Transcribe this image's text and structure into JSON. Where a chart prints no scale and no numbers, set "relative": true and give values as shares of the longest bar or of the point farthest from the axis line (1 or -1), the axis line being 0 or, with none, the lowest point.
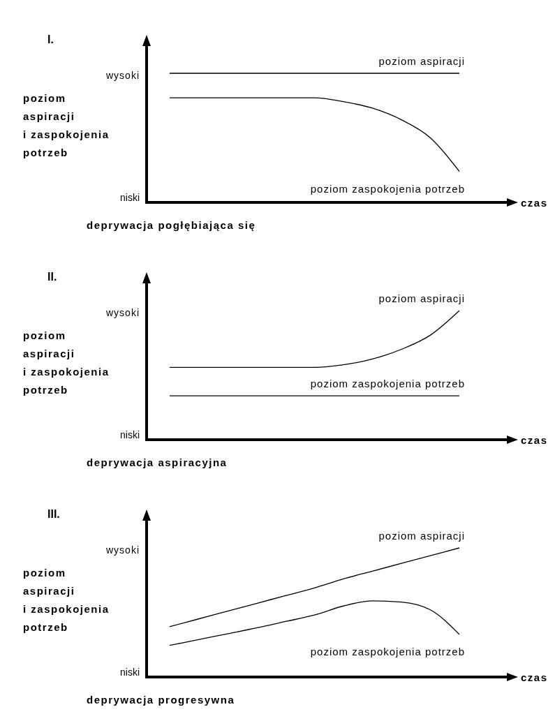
{
  "chart_data": [
    {
      "type": "line",
      "relative": true,
      "subtitle": "deprywacja pogłębiająca się",
      "xlabel": "czas",
      "ylabel": "poziom aspiracji i zaspokojenia potrzeb",
      "annotations": [
        "I.",
        "wysoki",
        "niski"
      ],
      "categories": [
        null,
        null,
        null,
        null,
        null,
        null,
        null,
        null,
        null,
        null,
        null
      ],
      "series": [
        {
          "name": "poziom aspiracji",
          "color": "#000000",
          "values": [
            1,
            1,
            1,
            1,
            1,
            1,
            1,
            1,
            1,
            1,
            1
          ]
        },
        {
          "name": "poziom zaspokojenia potrzeb",
          "color": "#000000",
          "values": [
            0.81,
            0.81,
            0.81,
            0.81,
            0.81,
            0.81,
            0.78,
            0.73,
            0.64,
            0.5,
            0.24
          ]
        }
      ]
    },
    {
      "type": "line",
      "relative": true,
      "subtitle": "deprywacja aspiracyjna",
      "xlabel": "czas",
      "ylabel": "poziom aspiracji i zaspokojenia potrzeb",
      "annotations": [
        "II.",
        "wysoki",
        "niski"
      ],
      "categories": [
        null,
        null,
        null,
        null,
        null,
        null,
        null,
        null,
        null,
        null,
        null
      ],
      "series": [
        {
          "name": "poziom aspiracji",
          "color": "#000000",
          "values": [
            0.56,
            0.56,
            0.56,
            0.56,
            0.56,
            0.56,
            0.58,
            0.625,
            0.7,
            0.81,
            1
          ]
        },
        {
          "name": "poziom zaspokojenia potrzeb",
          "color": "#000000",
          "values": [
            0.34,
            0.34,
            0.34,
            0.34,
            0.34,
            0.34,
            0.34,
            0.34,
            0.34,
            0.34,
            0.34
          ]
        }
      ]
    },
    {
      "type": "line",
      "relative": true,
      "subtitle": "deprywacja progresywna",
      "xlabel": "czas",
      "ylabel": "poziom aspiracji i zaspokojenia potrzeb",
      "annotations": [
        "III.",
        "wysoki",
        "niski"
      ],
      "categories": [
        null,
        null,
        null,
        null,
        null,
        null,
        null,
        null,
        null,
        null,
        null
      ],
      "series": [
        {
          "name": "poziom aspiracji",
          "color": "#000000",
          "values": [
            0.39,
            0.45,
            0.51,
            0.57,
            0.63,
            0.69,
            0.76,
            0.82,
            0.88,
            0.94,
            1
          ]
        },
        {
          "name": "poziom zaspokojenia potrzeb",
          "color": "#000000",
          "values": [
            0.245,
            0.29,
            0.335,
            0.38,
            0.43,
            0.48,
            0.55,
            0.59,
            0.58,
            0.52,
            0.33
          ]
        }
      ]
    }
  ]
}
